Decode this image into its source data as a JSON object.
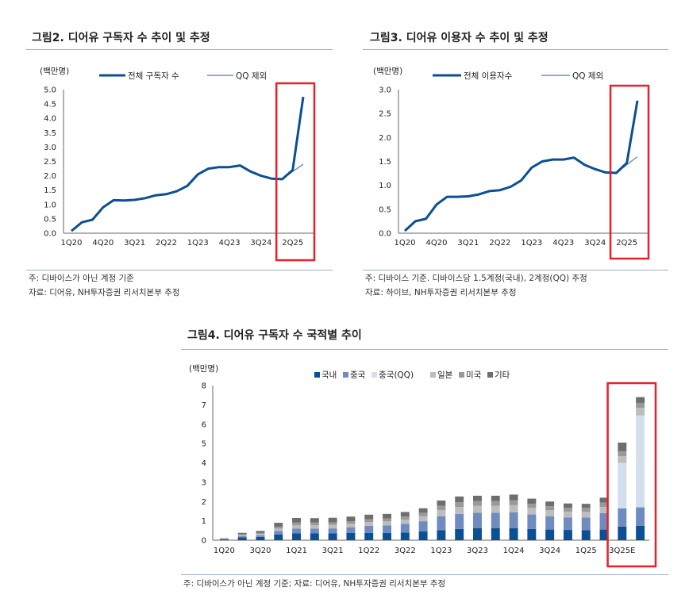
{
  "fig2": {
    "title": "그림2. 디어유 구독자 수 추이 및 추정",
    "notes": [
      "주: 디바이스가 아닌 계정 기준",
      "자료: 디어유, NH투자증권 리서치본부 추정"
    ],
    "highlight_color": "#e8202a"
  },
  "fig3": {
    "title": "그림3. 디어유 이용자 수 추이 및 추정",
    "notes": [
      "주: 디바이스 기준. 디바이스당 1.5계정(국내), 2계정(QQ) 추정",
      "자료: 하이브, NH투자증권 리서치본부 추정"
    ],
    "highlight_color": "#e8202a"
  },
  "fig4": {
    "title": "그림4. 디어유 구독자 수 국적별 추이",
    "notes": [
      "주: 디바이스가 아닌 계정 기준; 자료: 디어유, NH투자증권 리서치본부 추정"
    ],
    "highlight_color": "#e8202a"
  },
  "chart_data": [
    {
      "id": "fig2",
      "type": "line",
      "ylabel": "(백만명)",
      "ylim": [
        0,
        5
      ],
      "yticks": [
        "0.0",
        "0.5",
        "1.0",
        "1.5",
        "2.0",
        "2.5",
        "3.0",
        "3.5",
        "4.0",
        "4.5",
        "5.0"
      ],
      "x": [
        "1Q20",
        "2Q20",
        "3Q20",
        "4Q20",
        "1Q21",
        "2Q21",
        "3Q21",
        "4Q21",
        "1Q22",
        "2Q22",
        "3Q22",
        "4Q22",
        "1Q23",
        "2Q23",
        "3Q23",
        "4Q23",
        "1Q24",
        "2Q24",
        "3Q24",
        "4Q24",
        "1Q25",
        "2Q25",
        "3Q25"
      ],
      "xtick_labels": [
        "1Q20",
        "4Q20",
        "3Q21",
        "2Q22",
        "1Q23",
        "4Q23",
        "3Q24",
        "2Q25"
      ],
      "legend_position": "top",
      "series": [
        {
          "name": "전체 구독자 수",
          "color": "#0b4f94",
          "width": 3,
          "values": [
            0.08,
            0.38,
            0.47,
            0.9,
            1.15,
            1.14,
            1.16,
            1.22,
            1.32,
            1.36,
            1.46,
            1.65,
            2.05,
            2.25,
            2.3,
            2.3,
            2.36,
            2.15,
            2.0,
            1.9,
            1.88,
            2.2,
            4.75
          ]
        },
        {
          "name": "QQ 제외",
          "color": "#6f8fb8",
          "width": 1.4,
          "values": [
            0.08,
            0.38,
            0.47,
            0.9,
            1.15,
            1.14,
            1.16,
            1.22,
            1.32,
            1.36,
            1.46,
            1.65,
            2.05,
            2.25,
            2.3,
            2.3,
            2.36,
            2.15,
            2.0,
            1.9,
            1.88,
            2.15,
            2.4
          ]
        }
      ]
    },
    {
      "id": "fig3",
      "type": "line",
      "ylabel": "(백만명)",
      "ylim": [
        0,
        3
      ],
      "yticks": [
        "0.0",
        "0.5",
        "1.0",
        "1.5",
        "2.0",
        "2.5",
        "3.0"
      ],
      "x": [
        "1Q20",
        "2Q20",
        "3Q20",
        "4Q20",
        "1Q21",
        "2Q21",
        "3Q21",
        "4Q21",
        "1Q22",
        "2Q22",
        "3Q22",
        "4Q22",
        "1Q23",
        "2Q23",
        "3Q23",
        "4Q23",
        "1Q24",
        "2Q24",
        "3Q24",
        "4Q24",
        "1Q25",
        "2Q25",
        "3Q25"
      ],
      "xtick_labels": [
        "1Q20",
        "4Q20",
        "3Q21",
        "2Q22",
        "1Q23",
        "4Q23",
        "3Q24",
        "2Q25"
      ],
      "legend_position": "top",
      "series": [
        {
          "name": "전체 이용자수",
          "color": "#0b4f94",
          "width": 3,
          "values": [
            0.05,
            0.25,
            0.3,
            0.6,
            0.76,
            0.76,
            0.77,
            0.81,
            0.88,
            0.9,
            0.97,
            1.1,
            1.37,
            1.5,
            1.54,
            1.54,
            1.58,
            1.43,
            1.34,
            1.27,
            1.26,
            1.47,
            2.77
          ]
        },
        {
          "name": "QQ 제외",
          "color": "#6f8fb8",
          "width": 1.4,
          "values": [
            0.05,
            0.25,
            0.3,
            0.6,
            0.76,
            0.76,
            0.77,
            0.81,
            0.88,
            0.9,
            0.97,
            1.1,
            1.37,
            1.5,
            1.54,
            1.54,
            1.58,
            1.43,
            1.34,
            1.27,
            1.26,
            1.43,
            1.6
          ]
        }
      ]
    },
    {
      "id": "fig4",
      "type": "bar",
      "stacked": true,
      "ylabel": "(백만명)",
      "ylim": [
        0,
        8
      ],
      "yticks": [
        "0",
        "1",
        "2",
        "3",
        "4",
        "5",
        "6",
        "7",
        "8"
      ],
      "categories": [
        "1Q20",
        "2Q20",
        "3Q20",
        "4Q20",
        "1Q21",
        "2Q21",
        "3Q21",
        "4Q21",
        "1Q22",
        "2Q22",
        "3Q22",
        "4Q22",
        "1Q23",
        "2Q23",
        "3Q23",
        "4Q23",
        "1Q24",
        "2Q24",
        "3Q24",
        "4Q24",
        "1Q25",
        "2Q25",
        "3Q25E",
        "4Q25E"
      ],
      "xtick_labels": [
        "1Q20",
        "3Q20",
        "1Q21",
        "3Q21",
        "1Q22",
        "3Q22",
        "1Q23",
        "3Q23",
        "1Q24",
        "3Q24",
        "1Q25",
        "3Q25E"
      ],
      "legend_position": "top",
      "series": [
        {
          "name": "국내",
          "color": "#0b4f94",
          "values": [
            0.05,
            0.15,
            0.17,
            0.3,
            0.35,
            0.35,
            0.35,
            0.37,
            0.38,
            0.38,
            0.4,
            0.45,
            0.52,
            0.58,
            0.62,
            0.62,
            0.62,
            0.58,
            0.55,
            0.53,
            0.52,
            0.55,
            0.7,
            0.75
          ]
        },
        {
          "name": "중국",
          "color": "#6f8bc0",
          "values": [
            0.01,
            0.06,
            0.08,
            0.18,
            0.25,
            0.25,
            0.26,
            0.3,
            0.36,
            0.38,
            0.44,
            0.53,
            0.72,
            0.78,
            0.8,
            0.8,
            0.82,
            0.75,
            0.68,
            0.65,
            0.65,
            0.85,
            0.95,
            0.95
          ]
        },
        {
          "name": "중국(QQ)",
          "color": "#d3dfec",
          "values": [
            0,
            0,
            0,
            0,
            0,
            0,
            0,
            0,
            0,
            0,
            0,
            0,
            0,
            0,
            0,
            0,
            0,
            0,
            0,
            0,
            0,
            0,
            2.35,
            4.75
          ]
        },
        {
          "name": "일본",
          "color": "#bdbdbd",
          "values": [
            0.01,
            0.05,
            0.07,
            0.12,
            0.18,
            0.18,
            0.18,
            0.18,
            0.2,
            0.21,
            0.22,
            0.26,
            0.32,
            0.36,
            0.36,
            0.36,
            0.37,
            0.34,
            0.32,
            0.3,
            0.3,
            0.32,
            0.35,
            0.4
          ]
        },
        {
          "name": "미국",
          "color": "#999999",
          "values": [
            0.01,
            0.05,
            0.06,
            0.1,
            0.13,
            0.13,
            0.13,
            0.13,
            0.15,
            0.15,
            0.16,
            0.18,
            0.22,
            0.24,
            0.24,
            0.24,
            0.25,
            0.22,
            0.21,
            0.2,
            0.2,
            0.22,
            0.25,
            0.25
          ]
        },
        {
          "name": "기타",
          "color": "#6e6e6e",
          "values": [
            0.02,
            0.07,
            0.1,
            0.2,
            0.24,
            0.23,
            0.24,
            0.24,
            0.23,
            0.24,
            0.24,
            0.23,
            0.27,
            0.3,
            0.28,
            0.28,
            0.3,
            0.26,
            0.24,
            0.22,
            0.21,
            0.26,
            0.45,
            0.3
          ]
        }
      ]
    }
  ]
}
